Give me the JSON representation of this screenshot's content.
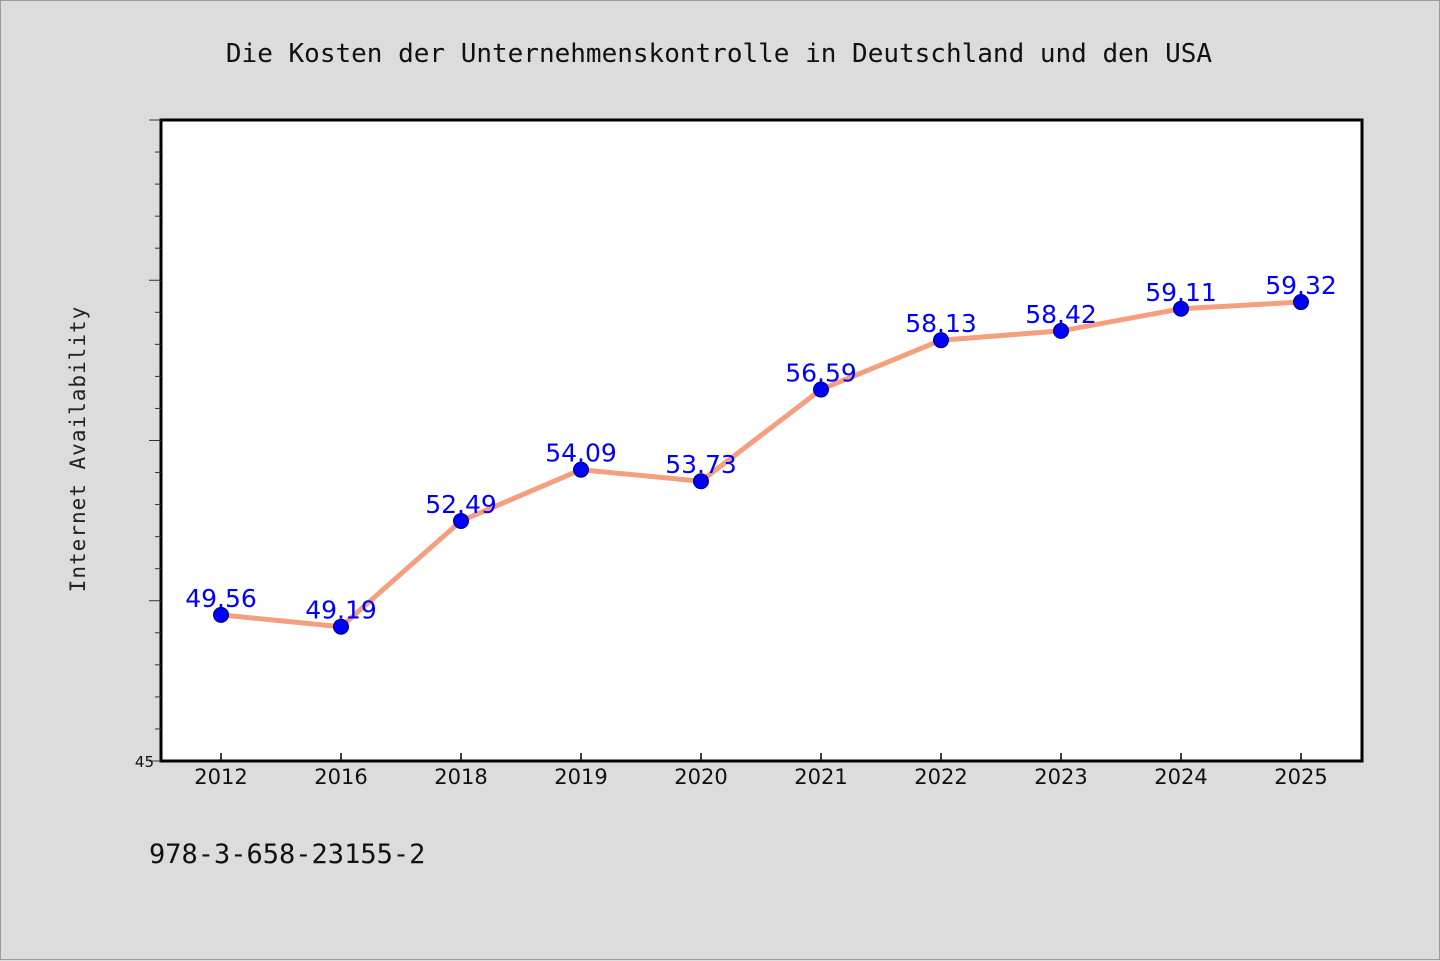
{
  "chart_data": {
    "type": "line",
    "title": "Die Kosten der Unternehmenskontrolle in Deutschland und den USA",
    "xlabel": "",
    "ylabel": "Internet Availability",
    "categories": [
      "2012",
      "2016",
      "2018",
      "2019",
      "2020",
      "2021",
      "2022",
      "2023",
      "2024",
      "2025"
    ],
    "series": [
      {
        "values": [
          49.56,
          49.19,
          52.49,
          54.09,
          53.73,
          56.59,
          58.13,
          58.42,
          59.11,
          59.32
        ]
      }
    ],
    "data_labels": [
      "49.56",
      "49.19",
      "52.49",
      "54.09",
      "53.73",
      "56.59",
      "58.13",
      "58.42",
      "59.11",
      "59.32"
    ],
    "ylim": [
      45,
      65
    ],
    "y_tick_labels": [
      "45"
    ],
    "grid": false,
    "legend": "none"
  },
  "footer": {
    "caption": "978-3-658-23155-2"
  },
  "colors": {
    "background": "#dcdcdc",
    "plot_background": "#ffffff",
    "line": "#f4a07f",
    "marker": "#0000ff",
    "data_label": "#0000ff"
  }
}
